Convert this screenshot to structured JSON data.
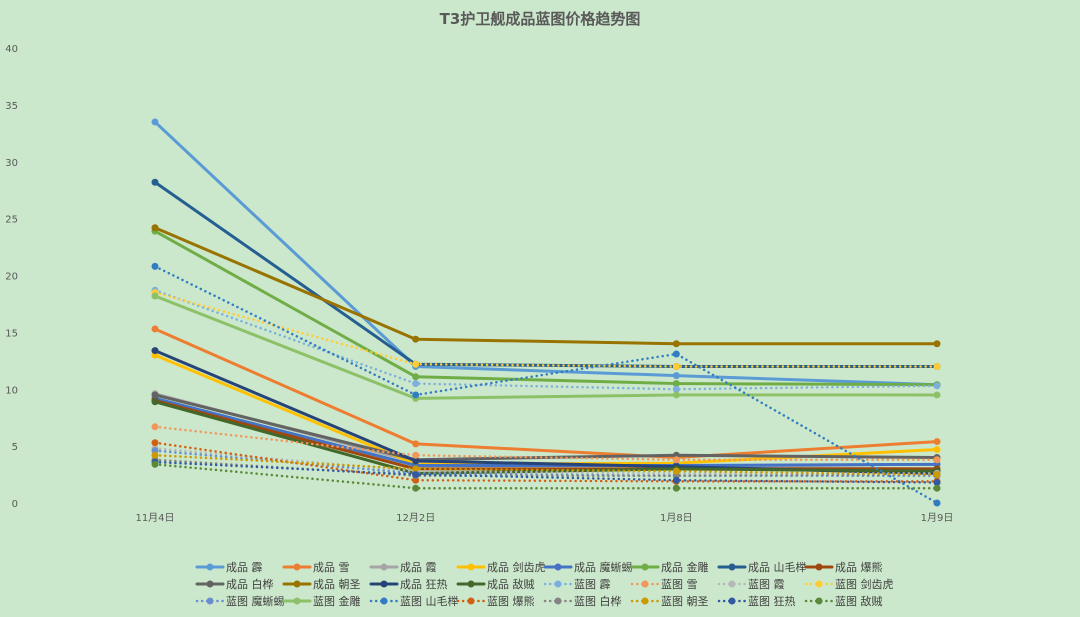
{
  "chart_data": {
    "type": "line",
    "title": "T3护卫舰成品蓝图价格趋势图",
    "xlabel": "",
    "ylabel": "",
    "categories": [
      "11月4日",
      "12月2日",
      "1月8日",
      "1月9日"
    ],
    "ylim": [
      0,
      40
    ],
    "yticks": [
      0,
      5,
      10,
      15,
      20,
      25,
      30,
      35,
      40
    ],
    "grid": false,
    "legend_position": "bottom",
    "series": [
      {
        "name": "成品 霹",
        "values": [
          33.5,
          12.0,
          11.2,
          10.4
        ],
        "color": "#5b9bd5",
        "dashed": false
      },
      {
        "name": "成品 雪",
        "values": [
          15.3,
          5.2,
          4.0,
          5.4
        ],
        "color": "#ed7d31",
        "dashed": false
      },
      {
        "name": "成品 霞",
        "values": [
          9.6,
          3.6,
          3.2,
          3.0
        ],
        "color": "#a5a5a5",
        "dashed": false
      },
      {
        "name": "成品 剑齿虎",
        "values": [
          13.0,
          3.4,
          3.5,
          4.7
        ],
        "color": "#ffc000",
        "dashed": false
      },
      {
        "name": "成品 魔蜥蜴",
        "values": [
          9.2,
          3.3,
          3.3,
          3.4
        ],
        "color": "#4472c4",
        "dashed": false
      },
      {
        "name": "成品 金雕",
        "values": [
          23.9,
          11.1,
          10.5,
          10.4
        ],
        "color": "#70ad47",
        "dashed": false
      },
      {
        "name": "成品 山毛榉",
        "values": [
          28.2,
          12.2,
          12.0,
          12.0
        ],
        "color": "#255e91",
        "dashed": false
      },
      {
        "name": "成品 爆熊",
        "values": [
          9.0,
          3.0,
          3.0,
          3.0
        ],
        "color": "#9e480e",
        "dashed": false
      },
      {
        "name": "成品 白桦",
        "values": [
          9.5,
          3.8,
          4.2,
          4.0
        ],
        "color": "#636363",
        "dashed": false
      },
      {
        "name": "成品 朝圣",
        "values": [
          24.2,
          14.4,
          14.0,
          14.0
        ],
        "color": "#997300",
        "dashed": false
      },
      {
        "name": "成品 狂热",
        "values": [
          13.4,
          3.7,
          3.2,
          2.6
        ],
        "color": "#264478",
        "dashed": false
      },
      {
        "name": "成品 敌贼",
        "values": [
          8.9,
          2.6,
          3.0,
          2.8
        ],
        "color": "#43682b",
        "dashed": false
      },
      {
        "name": "蓝图 霹",
        "values": [
          18.7,
          10.5,
          10.0,
          10.3
        ],
        "color": "#7cafdd",
        "dashed": true
      },
      {
        "name": "蓝图 雪",
        "values": [
          6.7,
          4.2,
          3.8,
          3.8
        ],
        "color": "#f1975a",
        "dashed": true
      },
      {
        "name": "蓝图 霞",
        "values": [
          4.8,
          2.8,
          2.6,
          2.6
        ],
        "color": "#b7b7b7",
        "dashed": true
      },
      {
        "name": "蓝图 剑齿虎",
        "values": [
          18.5,
          12.2,
          12.0,
          12.0
        ],
        "color": "#ffcd33",
        "dashed": true
      },
      {
        "name": "蓝图 魔蜥蜴",
        "values": [
          4.6,
          2.6,
          2.4,
          2.4
        ],
        "color": "#698ed0",
        "dashed": true
      },
      {
        "name": "蓝图 金雕",
        "values": [
          18.2,
          9.2,
          9.5,
          9.5
        ],
        "color": "#8cc168",
        "dashed": false
      },
      {
        "name": "蓝图 山毛榉",
        "values": [
          20.8,
          9.5,
          13.1,
          0.0
        ],
        "color": "#327dc2",
        "dashed": true
      },
      {
        "name": "蓝图 爆熊",
        "values": [
          5.3,
          2.0,
          1.9,
          1.9
        ],
        "color": "#d26012",
        "dashed": true
      },
      {
        "name": "蓝图 白桦",
        "values": [
          3.8,
          2.4,
          2.4,
          2.5
        ],
        "color": "#848484",
        "dashed": true
      },
      {
        "name": "蓝图 朝圣",
        "values": [
          4.2,
          3.0,
          2.8,
          2.5
        ],
        "color": "#cc9a00",
        "dashed": true
      },
      {
        "name": "蓝图 狂热",
        "values": [
          3.6,
          2.5,
          2.0,
          1.8
        ],
        "color": "#335aa1",
        "dashed": true
      },
      {
        "name": "蓝图 敌贼",
        "values": [
          3.4,
          1.3,
          1.3,
          1.3
        ],
        "color": "#5a8a39",
        "dashed": true
      }
    ]
  }
}
